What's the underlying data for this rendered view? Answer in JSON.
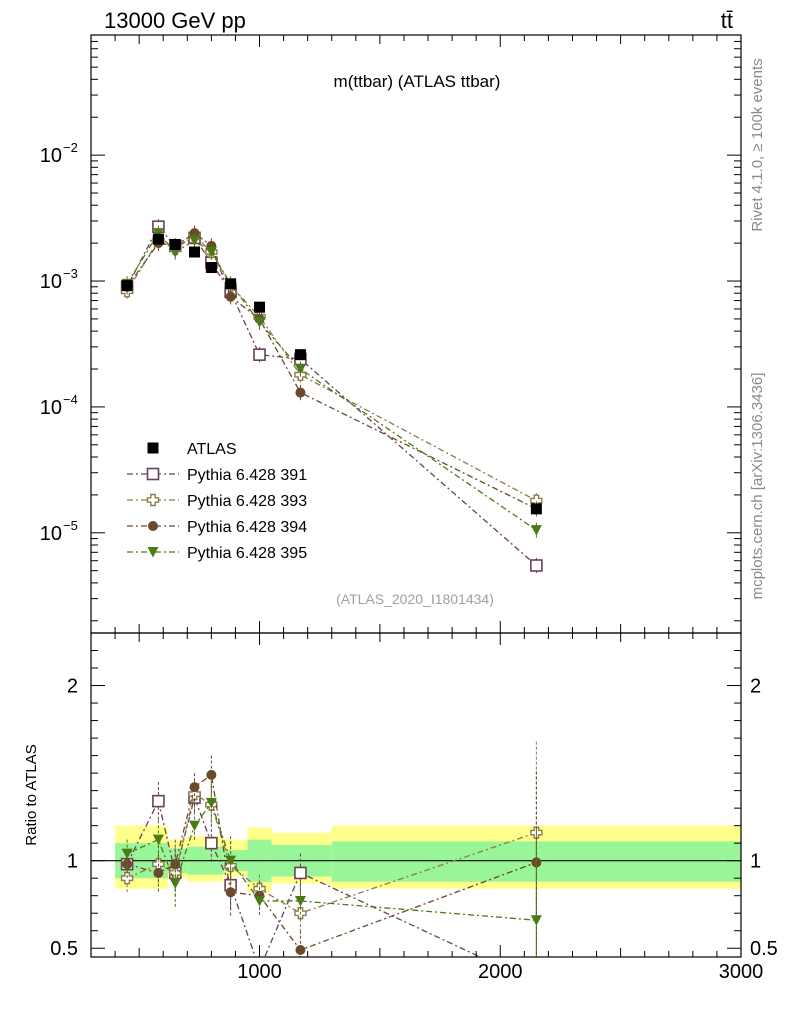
{
  "header": {
    "left": "13000 GeV pp",
    "right": "tt̄"
  },
  "side_labels": {
    "rivet": "Rivet 4.1.0, ≥ 100k events",
    "mcplots": "mcplots.cern.ch [arXiv:1306.3436]"
  },
  "chart_data": {
    "type": "scatter",
    "title": "m(ttbar) (ATLAS ttbar)",
    "analysis_tag": "(ATLAS_2020_I1801434)",
    "xlim": [
      300,
      3000
    ],
    "x_ticks": [
      "1000",
      "2000",
      "3000"
    ],
    "x_tick_values": [
      1000,
      2000,
      3000
    ],
    "main": {
      "yscale": "log",
      "ylim": [
        1.6e-06,
        0.09
      ],
      "y_ticks": [
        {
          "value": 0.01,
          "base": "10",
          "exp": "−2"
        },
        {
          "value": 0.001,
          "base": "10",
          "exp": "−3"
        },
        {
          "value": 0.0001,
          "base": "10",
          "exp": "−4"
        },
        {
          "value": 1e-05,
          "base": "10",
          "exp": "−5"
        }
      ],
      "legend_position": "lower-left"
    },
    "ratio": {
      "ylabel": "Ratio to ATLAS",
      "ylim": [
        0.45,
        2.3
      ],
      "y_ticks": [
        "0.5",
        "1",
        "2"
      ],
      "y_tick_values": [
        0.5,
        1,
        2
      ],
      "band_edges": [
        400,
        620,
        700,
        850,
        950,
        1050,
        1300,
        3000
      ],
      "band_inner": [
        [
          0.9,
          1.1
        ],
        [
          0.93,
          1.07
        ],
        [
          0.92,
          1.08
        ],
        [
          0.94,
          1.06
        ],
        [
          0.88,
          1.12
        ],
        [
          0.91,
          1.09
        ],
        [
          0.88,
          1.11
        ]
      ],
      "band_outer": [
        [
          0.84,
          1.2
        ],
        [
          0.9,
          1.12
        ],
        [
          0.88,
          1.14
        ],
        [
          0.91,
          1.12
        ],
        [
          0.82,
          1.19
        ],
        [
          0.87,
          1.16
        ],
        [
          0.84,
          1.2
        ]
      ]
    },
    "x": [
      450,
      580,
      650,
      730,
      800,
      880,
      1000,
      1170,
      2150
    ],
    "data": {
      "name": "ATLAS",
      "values": [
        0.00092,
        0.00215,
        0.00195,
        0.0017,
        0.00128,
        0.00095,
        0.00062,
        0.00026,
        1.55e-05
      ]
    },
    "series": [
      {
        "name": "Pythia 6.428 391",
        "color": "#6b3f5b",
        "marker": "square-open",
        "values": [
          0.0009,
          0.0027,
          0.0019,
          0.0022,
          0.0014,
          0.00082,
          0.00026,
          0.00024,
          5.5e-06
        ]
      },
      {
        "name": "Pythia 6.428 393",
        "color": "#8f7a4a",
        "marker": "cross-open",
        "values": [
          0.00083,
          0.0021,
          0.0018,
          0.0023,
          0.0017,
          0.00092,
          0.00052,
          0.00018,
          1.8e-05
        ]
      },
      {
        "name": "Pythia 6.428 394",
        "color": "#6a4a2a",
        "marker": "circle",
        "values": [
          0.0009,
          0.002,
          0.0019,
          0.0024,
          0.0019,
          0.00075,
          0.0005,
          0.00013,
          1.55e-05
        ]
      },
      {
        "name": "Pythia 6.428 395",
        "color": "#4c7a14",
        "marker": "triangle-down",
        "values": [
          0.00095,
          0.0024,
          0.0017,
          0.0021,
          0.0017,
          0.00095,
          0.00047,
          0.0002,
          1.05e-05
        ]
      }
    ],
    "ratios": [
      [
        0.98,
        1.34,
        0.93,
        1.36,
        1.1,
        0.86,
        0.38,
        0.93,
        0.3
      ],
      [
        0.9,
        0.98,
        0.93,
        1.38,
        1.32,
        0.97,
        0.84,
        0.7,
        1.16
      ],
      [
        0.98,
        0.93,
        0.98,
        1.42,
        1.49,
        0.82,
        0.8,
        0.49,
        0.99
      ],
      [
        1.04,
        1.12,
        0.87,
        1.2,
        1.33,
        1.0,
        0.77,
        0.77,
        0.66
      ]
    ]
  }
}
